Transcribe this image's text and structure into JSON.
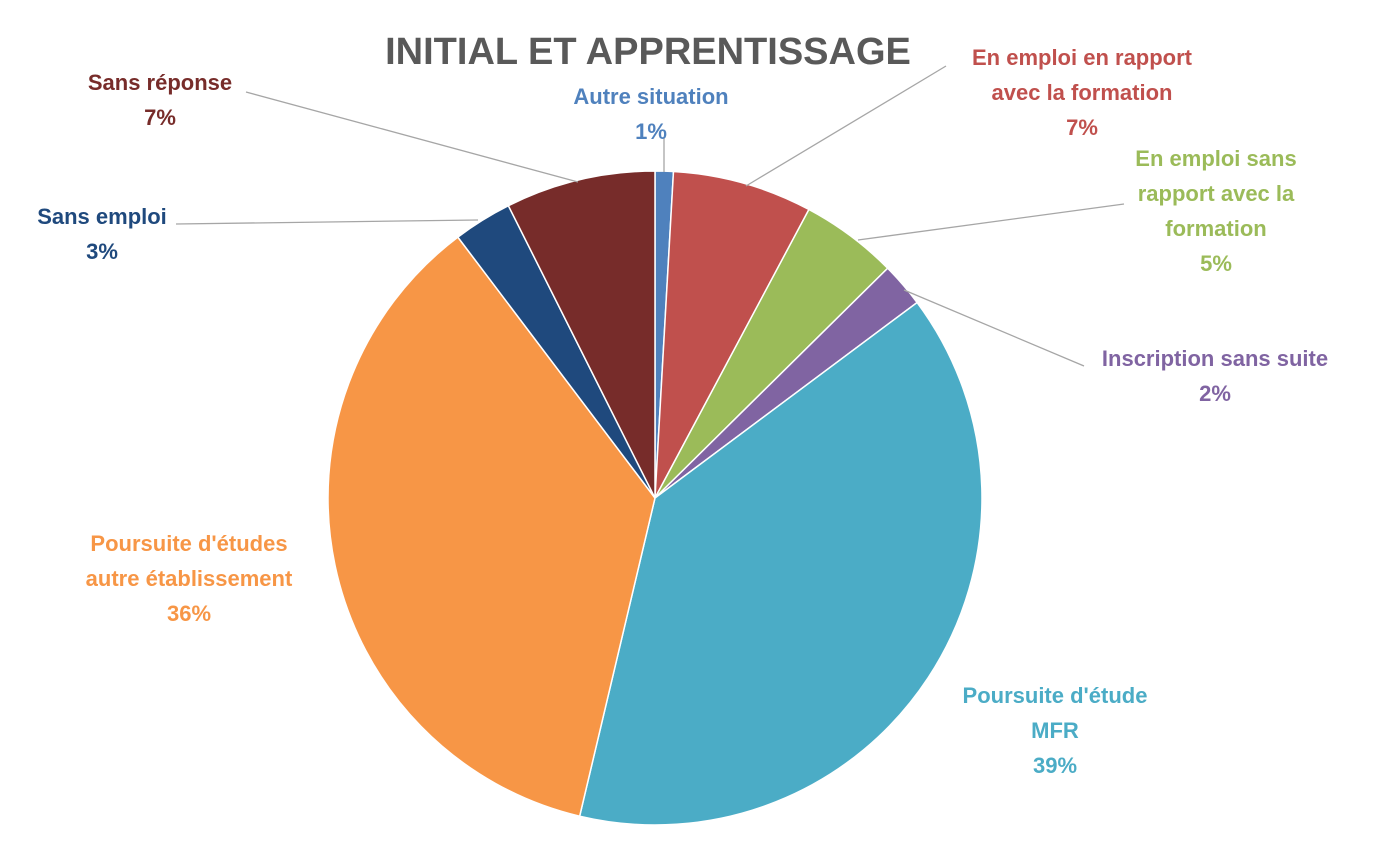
{
  "chart_data": {
    "type": "pie",
    "title": "INITIAL ET APPRENTISSAGE",
    "slices": [
      {
        "label": [
          "Autre situation"
        ],
        "percent_label": "1%",
        "value": 0.9,
        "color": "#4f81bd"
      },
      {
        "label": [
          "En emploi en rapport",
          "avec la formation"
        ],
        "percent_label": "7%",
        "value": 6.9,
        "color": "#c0504d"
      },
      {
        "label": [
          "En emploi sans",
          "rapport avec la",
          "formation"
        ],
        "percent_label": "5%",
        "value": 4.8,
        "color": "#9bbb59"
      },
      {
        "label": [
          "Inscription sans suite"
        ],
        "percent_label": "2%",
        "value": 2.2,
        "color": "#8064a2"
      },
      {
        "label": [
          "Poursuite d'étude",
          "MFR"
        ],
        "percent_label": "39%",
        "value": 38.9,
        "color": "#4bacc6"
      },
      {
        "label": [
          "Poursuite d'études",
          "autre établissement"
        ],
        "percent_label": "36%",
        "value": 36.0,
        "color": "#f79646"
      },
      {
        "label": [
          "Sans emploi"
        ],
        "percent_label": "3%",
        "value": 2.9,
        "color": "#1f497d"
      },
      {
        "label": [
          "Sans réponse"
        ],
        "percent_label": "7%",
        "value": 7.4,
        "color": "#772c2a"
      }
    ],
    "legend": "none",
    "data_labels": "outside with leader lines"
  }
}
